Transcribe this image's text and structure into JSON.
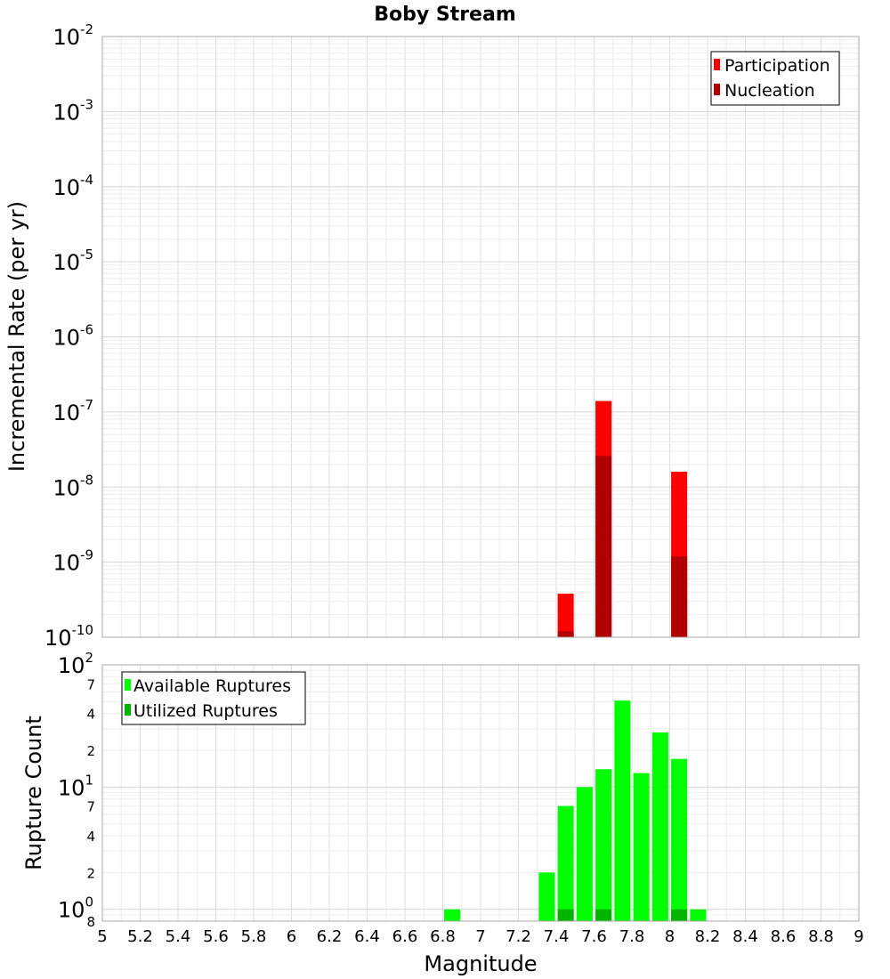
{
  "chart_data": [
    {
      "type": "bar",
      "title": "Boby Stream",
      "ylabel": "Incremental Rate (per yr)",
      "xlabel": "",
      "y_scale": "log",
      "xlim": [
        5,
        9
      ],
      "ylim": [
        1e-10,
        0.01
      ],
      "y_ticks": [
        {
          "base": "10",
          "exp": "-10",
          "value": 1e-10
        },
        {
          "base": "10",
          "exp": "-9",
          "value": 1e-09
        },
        {
          "base": "10",
          "exp": "-8",
          "value": 1e-08
        },
        {
          "base": "10",
          "exp": "-7",
          "value": 1e-07
        },
        {
          "base": "10",
          "exp": "-6",
          "value": 1e-06
        },
        {
          "base": "10",
          "exp": "-5",
          "value": 1e-05
        },
        {
          "base": "10",
          "exp": "-4",
          "value": 0.0001
        },
        {
          "base": "10",
          "exp": "-3",
          "value": 0.001
        },
        {
          "base": "10",
          "exp": "-2",
          "value": 0.01
        }
      ],
      "legend_position": "top-right",
      "grid": true,
      "series": [
        {
          "name": "Participation",
          "color": "#ff0000",
          "x": [
            7.45,
            7.65,
            8.05
          ],
          "values": [
            3.8e-10,
            1.4e-07,
            1.6e-08
          ]
        },
        {
          "name": "Nucleation",
          "color": "#b00000",
          "x": [
            7.45,
            7.65,
            8.05
          ],
          "values": [
            1.2e-10,
            2.6e-08,
            1.2e-09
          ]
        }
      ]
    },
    {
      "type": "bar",
      "title": "",
      "ylabel": "Rupture Count",
      "xlabel": "Magnitude",
      "y_scale": "log",
      "xlim": [
        5,
        9
      ],
      "ylim": [
        0.8,
        100
      ],
      "x_ticks": [
        "5",
        "5.2",
        "5.4",
        "5.6",
        "5.8",
        "6",
        "6.2",
        "6.4",
        "6.6",
        "6.8",
        "7",
        "7.2",
        "7.4",
        "7.6",
        "7.8",
        "8",
        "8.2",
        "8.4",
        "8.6",
        "8.8",
        "9"
      ],
      "y_ticks": [
        {
          "base": "10",
          "exp": "0",
          "value": 1
        },
        {
          "base": "10",
          "exp": "1",
          "value": 10
        },
        {
          "base": "10",
          "exp": "2",
          "value": 100
        }
      ],
      "y_minor_labels": [
        {
          "label": "8",
          "value": 0.8
        },
        {
          "label": "2",
          "value": 2
        },
        {
          "label": "4",
          "value": 4
        },
        {
          "label": "7",
          "value": 7
        },
        {
          "label": "2",
          "value": 20
        },
        {
          "label": "4",
          "value": 40
        },
        {
          "label": "7",
          "value": 70
        }
      ],
      "legend_position": "top-left",
      "grid": true,
      "series": [
        {
          "name": "Available Ruptures",
          "color": "#00ff00",
          "x": [
            6.85,
            7.35,
            7.45,
            7.55,
            7.65,
            7.75,
            7.85,
            7.95,
            8.05,
            8.15
          ],
          "values": [
            1,
            2,
            7,
            10,
            14,
            51,
            13,
            28,
            17,
            1
          ]
        },
        {
          "name": "Utilized Ruptures",
          "color": "#00b400",
          "x": [
            7.45,
            7.65,
            8.05
          ],
          "values": [
            1,
            1,
            1
          ]
        }
      ]
    }
  ]
}
